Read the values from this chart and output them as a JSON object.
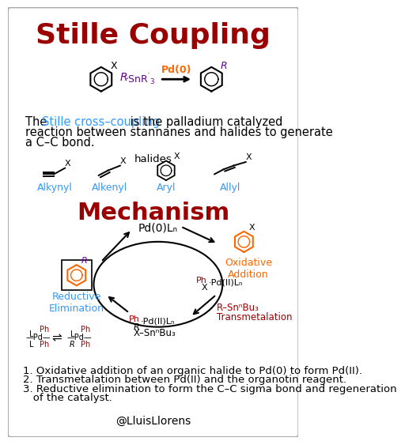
{
  "title": "Stille Coupling",
  "title_color": "#9B0000",
  "bg_color": "#FFFFFF",
  "border_color": "#AAAAAA",
  "mechanism_title": "Mechanism",
  "mechanism_color": "#9B0000",
  "description_highlight": "Stille cross–coupling",
  "description_highlight_color": "#3399FF",
  "steps": [
    "1. Oxidative addition of an organic halide to Pd(0) to form Pd(II).",
    "2. Transmetalation between Pd(II) and the organotin reagent.",
    "3. Reductive elimination to form the C–C sigma bond and regeneration",
    "   of the catalyst."
  ],
  "credit": "@LluisLlorens",
  "halides_label": "halides",
  "halide_labels": [
    "Alkynyl",
    "Alkenyl",
    "Aryl",
    "Allyl"
  ],
  "blue": "#3399FF",
  "orange": "#FF6600",
  "dark_red": "#9B0000",
  "purple": "#660099",
  "black": "#000000"
}
